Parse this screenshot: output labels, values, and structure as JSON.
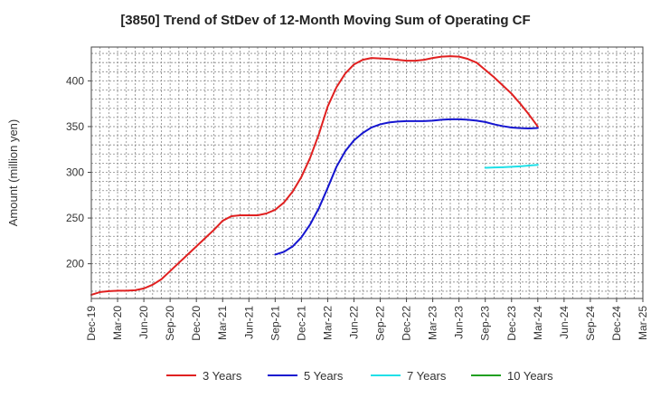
{
  "chart_data": {
    "type": "line",
    "title": "[3850]  Trend of StDev of 12-Month Moving Sum of Operating CF",
    "xlabel": "",
    "ylabel": "Amount (million yen)",
    "ylim": [
      162,
      437
    ],
    "yticks": [
      200,
      250,
      300,
      350,
      400
    ],
    "x_tick_labels": [
      "Dec-19",
      "Mar-20",
      "Jun-20",
      "Sep-20",
      "Dec-20",
      "Mar-21",
      "Jun-21",
      "Sep-21",
      "Dec-21",
      "Mar-22",
      "Jun-22",
      "Sep-22",
      "Dec-22",
      "Mar-23",
      "Jun-23",
      "Sep-23",
      "Dec-23",
      "Mar-24",
      "Jun-24",
      "Sep-24",
      "Dec-24",
      "Mar-25"
    ],
    "grid": true,
    "legend_position": "bottom",
    "series": [
      {
        "name": "3 Years",
        "color": "#e02020",
        "values": [
          [
            "Dec-19",
            166
          ],
          [
            "Jan-20",
            169
          ],
          [
            "Feb-20",
            170
          ],
          [
            "Mar-20",
            170.5
          ],
          [
            "Apr-20",
            170.5
          ],
          [
            "May-20",
            171
          ],
          [
            "Jun-20",
            173
          ],
          [
            "Jul-20",
            177
          ],
          [
            "Aug-20",
            183
          ],
          [
            "Sep-20",
            192
          ],
          [
            "Oct-20",
            201
          ],
          [
            "Nov-20",
            210
          ],
          [
            "Dec-20",
            219
          ],
          [
            "Jan-21",
            228
          ],
          [
            "Feb-21",
            237
          ],
          [
            "Mar-21",
            247
          ],
          [
            "Apr-21",
            252
          ],
          [
            "May-21",
            253
          ],
          [
            "Jun-21",
            253
          ],
          [
            "Jul-21",
            253
          ],
          [
            "Aug-21",
            255
          ],
          [
            "Sep-21",
            259
          ],
          [
            "Oct-21",
            267
          ],
          [
            "Nov-21",
            279
          ],
          [
            "Dec-21",
            295
          ],
          [
            "Jan-22",
            316
          ],
          [
            "Feb-22",
            342
          ],
          [
            "Mar-22",
            372
          ],
          [
            "Apr-22",
            393
          ],
          [
            "May-22",
            408
          ],
          [
            "Jun-22",
            418
          ],
          [
            "Jul-22",
            423
          ],
          [
            "Aug-22",
            425
          ],
          [
            "Sep-22",
            424.5
          ],
          [
            "Oct-22",
            424
          ],
          [
            "Nov-22",
            423
          ],
          [
            "Dec-22",
            422
          ],
          [
            "Jan-23",
            422
          ],
          [
            "Feb-23",
            423
          ],
          [
            "Mar-23",
            425
          ],
          [
            "Apr-23",
            426.5
          ],
          [
            "May-23",
            427
          ],
          [
            "Jun-23",
            426.5
          ],
          [
            "Jul-23",
            424
          ],
          [
            "Aug-23",
            420
          ],
          [
            "Sep-23",
            412
          ],
          [
            "Oct-23",
            404
          ],
          [
            "Nov-23",
            395
          ],
          [
            "Dec-23",
            386
          ],
          [
            "Jan-24",
            375
          ],
          [
            "Feb-24",
            363
          ],
          [
            "Mar-24",
            350
          ]
        ]
      },
      {
        "name": "5 Years",
        "color": "#1515d0",
        "values": [
          [
            "Sep-21",
            210
          ],
          [
            "Oct-21",
            213
          ],
          [
            "Nov-21",
            219
          ],
          [
            "Dec-21",
            229
          ],
          [
            "Jan-22",
            243
          ],
          [
            "Feb-22",
            261
          ],
          [
            "Mar-22",
            283
          ],
          [
            "Apr-22",
            306
          ],
          [
            "May-22",
            323
          ],
          [
            "Jun-22",
            335
          ],
          [
            "Jul-22",
            343
          ],
          [
            "Aug-22",
            349
          ],
          [
            "Sep-22",
            352.5
          ],
          [
            "Oct-22",
            354.5
          ],
          [
            "Nov-22",
            355.5
          ],
          [
            "Dec-22",
            356
          ],
          [
            "Jan-23",
            356
          ],
          [
            "Feb-23",
            356
          ],
          [
            "Mar-23",
            356.5
          ],
          [
            "Apr-23",
            357.5
          ],
          [
            "May-23",
            358
          ],
          [
            "Jun-23",
            358
          ],
          [
            "Jul-23",
            357.5
          ],
          [
            "Aug-23",
            356.5
          ],
          [
            "Sep-23",
            355
          ],
          [
            "Oct-23",
            352.5
          ],
          [
            "Nov-23",
            350.5
          ],
          [
            "Dec-23",
            349
          ],
          [
            "Jan-24",
            348.3
          ],
          [
            "Feb-24",
            348
          ],
          [
            "Mar-24",
            348.5
          ]
        ]
      },
      {
        "name": "7 Years",
        "color": "#20e0e8",
        "values": [
          [
            "Sep-23",
            305
          ],
          [
            "Oct-23",
            305.3
          ],
          [
            "Nov-23",
            305.6
          ],
          [
            "Dec-23",
            306
          ],
          [
            "Jan-24",
            306.6
          ],
          [
            "Feb-24",
            307.4
          ],
          [
            "Mar-24",
            308.2
          ]
        ]
      },
      {
        "name": "10 Years",
        "color": "#20a020",
        "values": []
      }
    ]
  }
}
